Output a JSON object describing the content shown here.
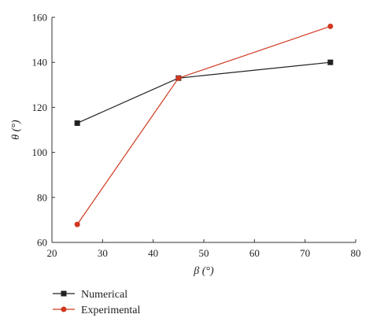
{
  "chart_data": {
    "type": "line",
    "title": "",
    "xlabel": "β (°)",
    "ylabel": "θ (°)",
    "xlim": [
      20,
      80
    ],
    "ylim": [
      60,
      160
    ],
    "x_ticks": [
      "20",
      "30",
      "40",
      "50",
      "60",
      "70",
      "80"
    ],
    "y_ticks": [
      "60",
      "80",
      "100",
      "120",
      "140",
      "160"
    ],
    "grid": false,
    "legend_position": "bottom-left, below plot",
    "series": [
      {
        "name": "Numerical",
        "marker": "square",
        "color": "#222222",
        "x": [
          25,
          45,
          75
        ],
        "y": [
          113,
          133,
          140
        ]
      },
      {
        "name": "Experimental",
        "marker": "circle",
        "color": "#d0381f",
        "x": [
          25,
          45,
          75
        ],
        "y": [
          68,
          133,
          156
        ]
      }
    ]
  }
}
